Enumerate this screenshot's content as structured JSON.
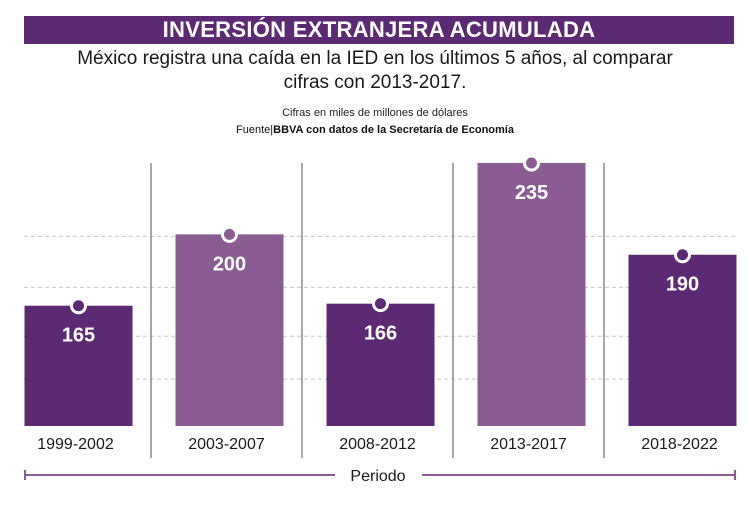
{
  "header": {
    "title": "INVERSIÓN EXTRANJERA ACUMULADA",
    "subtitle": "México registra una caída en la IED en los últimos 5 años, al comparar cifras con 2013-2017.",
    "units": "Cifras en miles de millones de dólares",
    "source_prefix": "Fuente|",
    "source_text": "BBVA con datos de la Secretaría de Economía"
  },
  "colors": {
    "title_bg": "#5c2a72",
    "bar_dark": "#5c2a72",
    "bar_light": "#8a5c93",
    "divider": "#8c8c8c",
    "grid": "#c8c8c8",
    "axis_line": "#8a5c93"
  },
  "chart_data": {
    "type": "bar",
    "title": "INVERSIÓN EXTRANJERA ACUMULADA",
    "xlabel": "Periodo",
    "ylabel": "Cifras en miles de millones de dólares",
    "categories": [
      "1999-2002",
      "2003-2007",
      "2008-2012",
      "2013-2017",
      "2018-2022"
    ],
    "values": [
      165,
      200,
      166,
      235,
      190
    ],
    "bar_shades": [
      "dark",
      "light",
      "dark",
      "light",
      "dark"
    ],
    "grid": true,
    "grid_values": [
      129,
      150,
      174,
      199
    ],
    "ylim": [
      106,
      235
    ],
    "legend": "none"
  }
}
